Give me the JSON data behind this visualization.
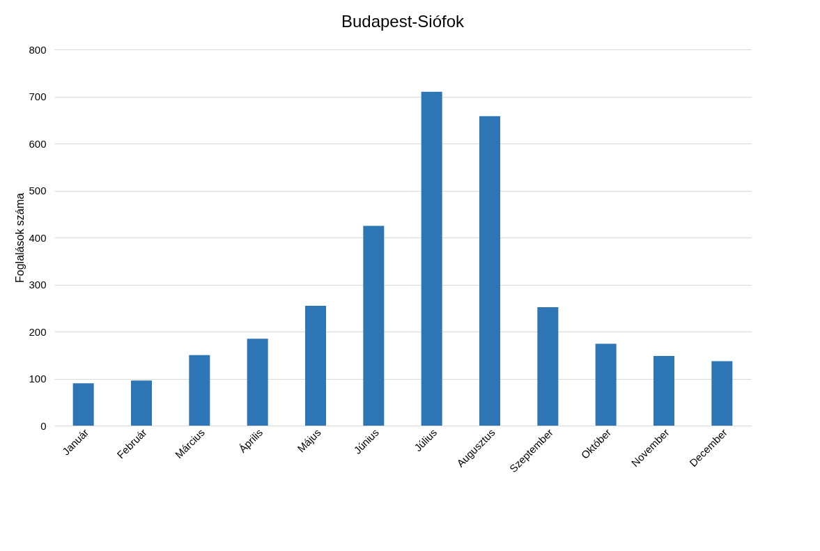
{
  "chart_data": {
    "type": "bar",
    "title": "Budapest-Siófok",
    "ylabel": "Foglalások száma",
    "categories": [
      "Január",
      "Február",
      "Március",
      "Április",
      "Május",
      "Június",
      "Július",
      "Augusztus",
      "Szeptember",
      "Október",
      "November",
      "December"
    ],
    "values": [
      90,
      96,
      150,
      185,
      255,
      425,
      710,
      658,
      252,
      174,
      148,
      137
    ],
    "color": "#2e75b6",
    "ylim": [
      0,
      800
    ],
    "yticks": [
      0,
      100,
      200,
      300,
      400,
      500,
      600,
      700,
      800
    ],
    "grid": "y"
  }
}
